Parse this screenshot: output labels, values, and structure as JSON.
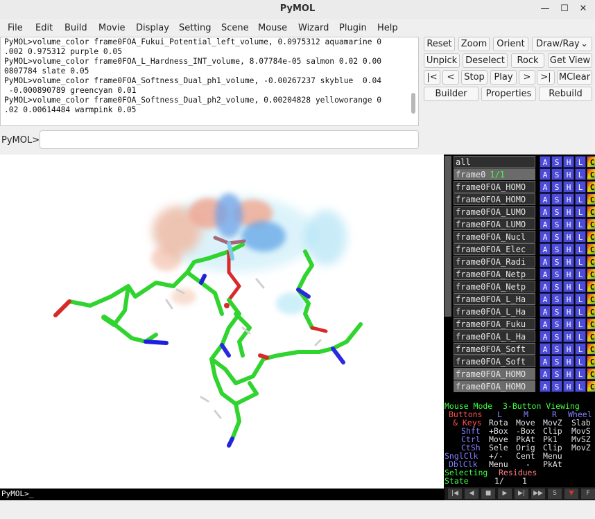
{
  "window": {
    "title": "PyMOL"
  },
  "menu": [
    "File",
    "Edit",
    "Build",
    "Movie",
    "Display",
    "Setting",
    "Scene",
    "Mouse",
    "Wizard",
    "Plugin",
    "Help"
  ],
  "console": {
    "lines": [
      "PyMOL>volume_color frame0FOA_Fukui_Potential_left_volume, 0.0975312 aquamarine 0",
      ".002 0.975312 purple 0.05",
      "PyMOL>volume_color frame0FOA_L_Hardness_INT_volume, 8.07784e-05 salmon 0.02 0.00",
      "0807784 slate 0.05",
      "PyMOL>volume_color frame0FOA_Softness_Dual_ph1_volume, -0.00267237 skyblue  0.04",
      " -0.000890789 greencyan 0.01",
      "PyMOL>volume_color frame0FOA_Softness_Dual_ph2_volume, 0.00204828 yelloworange 0",
      ".02 0.00614484 warmpink 0.05"
    ]
  },
  "prompt": {
    "label": "PyMOL>",
    "value": ""
  },
  "buttons": {
    "row1": [
      "Reset",
      "Zoom",
      "Orient",
      "Draw/Ray"
    ],
    "row2": [
      "Unpick",
      "Deselect",
      "Rock",
      "Get View"
    ],
    "row3": [
      "|<",
      "<",
      "Stop",
      "Play",
      ">",
      ">|",
      "MClear"
    ],
    "row4": [
      "Builder",
      "Properties",
      "Rebuild"
    ]
  },
  "viewer": {
    "command_line": "PyMOL>_"
  },
  "objects": [
    {
      "name": "all",
      "state": "",
      "dim": false
    },
    {
      "name": "frame0",
      "state": "1/1",
      "dim": true
    },
    {
      "name": "frame0FOA_HOMO",
      "state": "",
      "dim": false
    },
    {
      "name": "frame0FOA_HOMO",
      "state": "",
      "dim": false
    },
    {
      "name": "frame0FOA_LUMO",
      "state": "",
      "dim": false
    },
    {
      "name": "frame0FOA_LUMO",
      "state": "",
      "dim": false
    },
    {
      "name": "frame0FOA_Nucl",
      "state": "",
      "dim": false
    },
    {
      "name": "frame0FOA_Elec",
      "state": "",
      "dim": false
    },
    {
      "name": "frame0FOA_Radi",
      "state": "",
      "dim": false
    },
    {
      "name": "frame0FOA_Netp",
      "state": "",
      "dim": false
    },
    {
      "name": "frame0FOA_Netp",
      "state": "",
      "dim": false
    },
    {
      "name": "frame0FOA_L_Ha",
      "state": "",
      "dim": false
    },
    {
      "name": "frame0FOA_L_Ha",
      "state": "",
      "dim": false
    },
    {
      "name": "frame0FOA_Fuku",
      "state": "",
      "dim": false
    },
    {
      "name": "frame0FOA_L_Ha",
      "state": "",
      "dim": false
    },
    {
      "name": "frame0FOA_Soft",
      "state": "",
      "dim": false
    },
    {
      "name": "frame0FOA_Soft",
      "state": "",
      "dim": false
    },
    {
      "name": "frame0FOA_HOMO",
      "state": "",
      "dim": true
    },
    {
      "name": "frame0FOA_HOMO",
      "state": "",
      "dim": true
    }
  ],
  "obj_buttons": [
    "A",
    "S",
    "H",
    "L",
    "C"
  ],
  "mouse_panel": {
    "mode_label": "Mouse Mode",
    "mode_value": "3-Button Viewing",
    "buttons_row": [
      "Buttons",
      "L",
      "M",
      "R",
      "Wheel"
    ],
    "keys_row": [
      "& Keys",
      "Rota",
      "Move",
      "MovZ",
      "Slab"
    ],
    "shft_row": [
      "Shft",
      "+Box",
      "-Box",
      "Clip",
      "MovS"
    ],
    "ctrl_row": [
      "Ctrl",
      "Move",
      "PkAt",
      "Pk1",
      "MvSZ"
    ],
    "ctsh_row": [
      "CtSh",
      "Sele",
      "Orig",
      "Clip",
      "MovZ"
    ],
    "snglclk_row": [
      "SnglClk",
      "+/-",
      "Cent",
      "Menu"
    ],
    "dblclk_row": [
      "DblClk",
      "Menu",
      "-",
      "PkAt"
    ],
    "selecting_label": "Selecting",
    "selecting_value": "Residues",
    "state_label": "State",
    "state_value": "1/",
    "state_count": "1"
  },
  "colors": {
    "mode_green": "#40ff40",
    "key_label": "#8080ff",
    "button_label": "#ff5050",
    "value_text": "#e0e0e0",
    "selecting_value": "#ff8080"
  }
}
